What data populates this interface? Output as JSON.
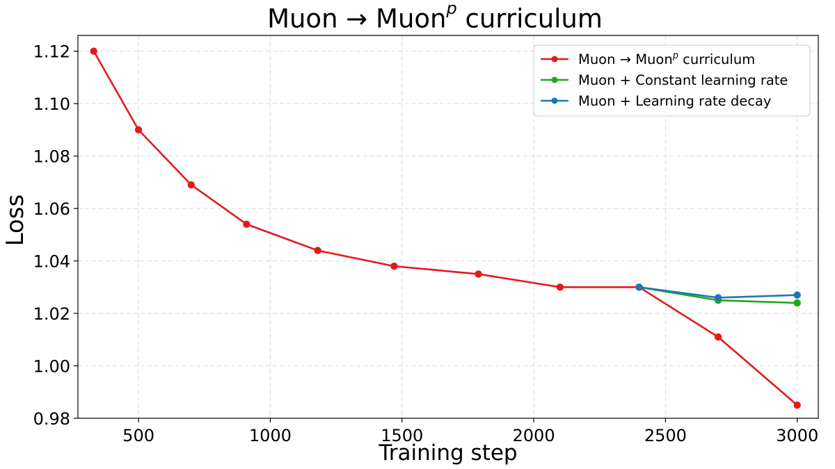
{
  "chart_data": {
    "type": "line",
    "title": "Muon → Muon",
    "title_superscript": "p",
    "title_suffix": " curriculum",
    "xlabel": "Training step",
    "ylabel": "Loss",
    "xlim": [
      270,
      3080
    ],
    "ylim": [
      0.98,
      1.126
    ],
    "xticks": [
      500,
      1000,
      1500,
      2000,
      2500,
      3000
    ],
    "yticks": [
      0.98,
      1.0,
      1.02,
      1.04,
      1.06,
      1.08,
      1.1,
      1.12
    ],
    "xtick_labels": [
      "500",
      "1000",
      "1500",
      "2000",
      "2500",
      "3000"
    ],
    "ytick_labels": [
      "0.98",
      "1.00",
      "1.02",
      "1.04",
      "1.06",
      "1.08",
      "1.10",
      "1.12"
    ],
    "grid": true,
    "legend_position": "top-right",
    "series": [
      {
        "name": "Muon → Muon",
        "name_superscript": "p",
        "name_suffix": " curriculum",
        "color": "#e31a1c",
        "x": [
          330,
          500,
          700,
          910,
          1180,
          1470,
          1790,
          2100,
          2400,
          2700,
          3000
        ],
        "y": [
          1.12,
          1.09,
          1.069,
          1.054,
          1.044,
          1.038,
          1.035,
          1.03,
          1.03,
          1.011,
          0.985
        ]
      },
      {
        "name": "Muon + Constant learning rate",
        "color": "#1aab1a",
        "x": [
          2400,
          2700,
          3000
        ],
        "y": [
          1.03,
          1.025,
          1.024
        ]
      },
      {
        "name": "Muon + Learning rate decay",
        "color": "#1f77b4",
        "x": [
          2400,
          2700,
          3000
        ],
        "y": [
          1.03,
          1.026,
          1.027
        ]
      }
    ]
  }
}
